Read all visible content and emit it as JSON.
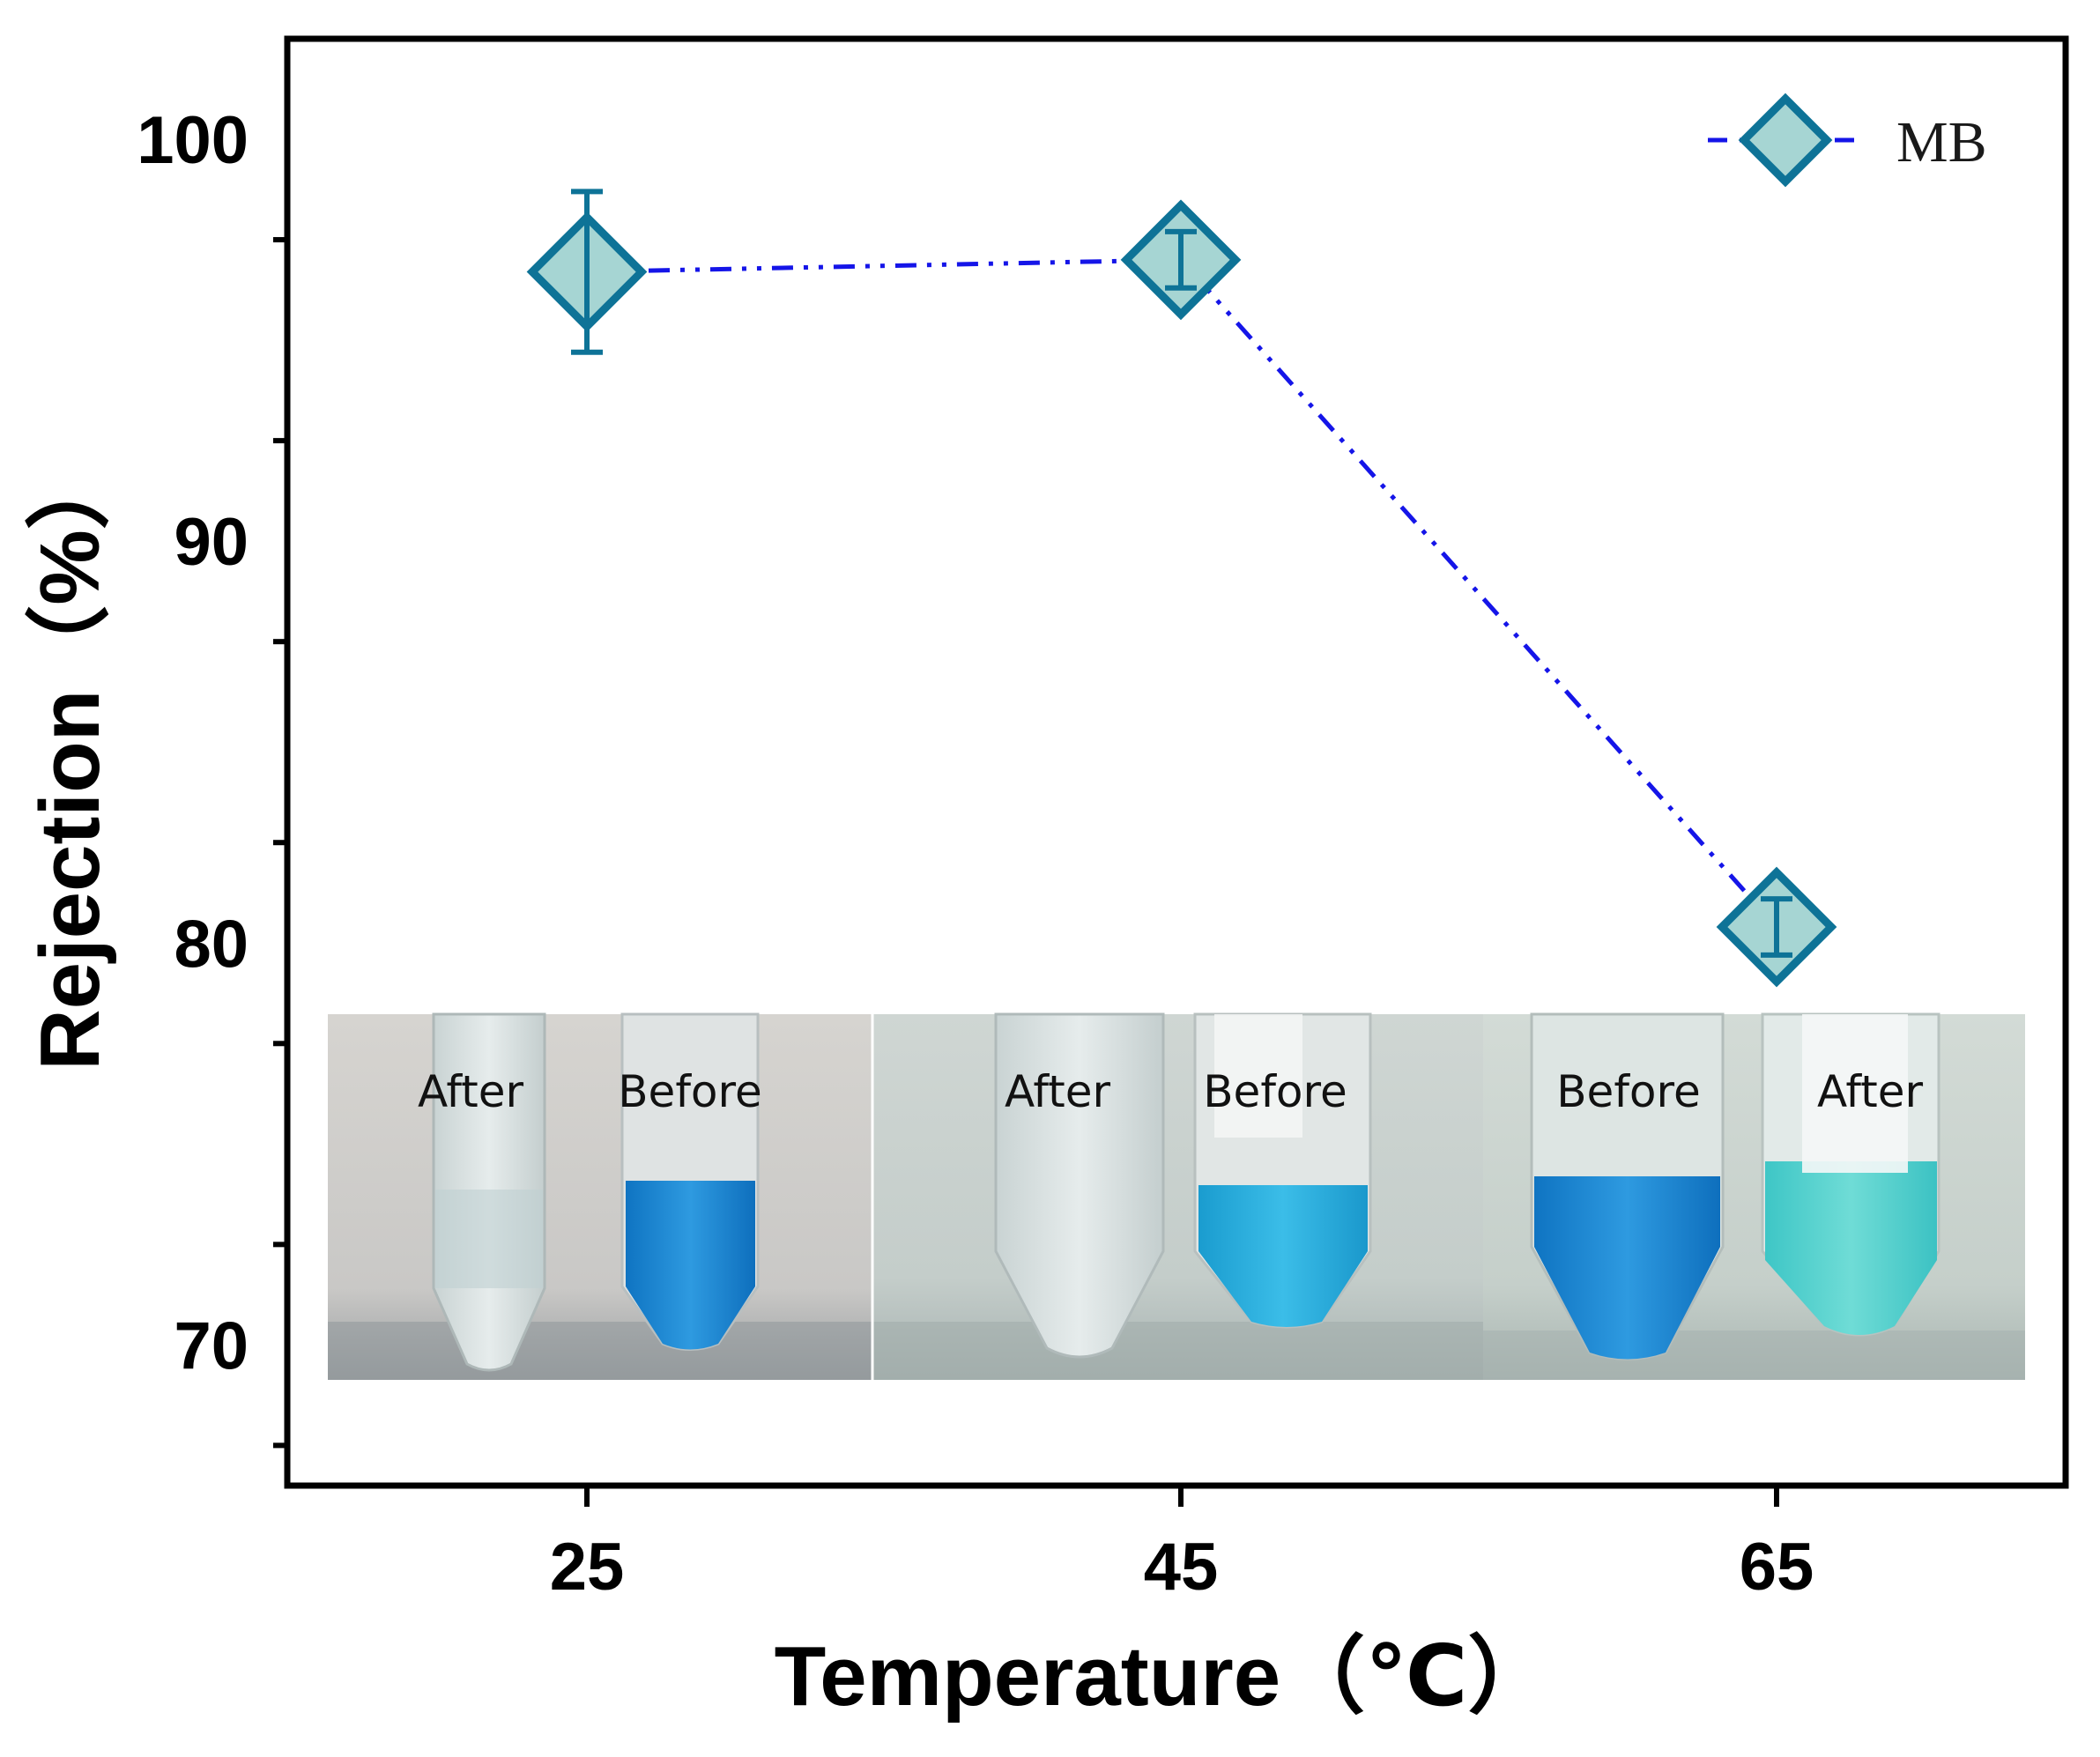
{
  "chart_data": {
    "type": "line",
    "xlabel": "Temperature（℃）",
    "ylabel": "Rejection（%）",
    "categories": [
      25,
      45,
      65
    ],
    "x_ticks": [
      "25",
      "45",
      "65"
    ],
    "y_ticks": [
      70,
      80,
      90,
      100
    ],
    "ylim": [
      66.5,
      102.5
    ],
    "series": [
      {
        "name": "MB",
        "marker": "diamond",
        "line_style": "dash-dot-dot",
        "values": [
          96.7,
          97.0,
          80.4
        ],
        "error": [
          2.0,
          0.7,
          0.7
        ]
      }
    ],
    "legend": {
      "label": "MB",
      "position": "top-right"
    },
    "colors": {
      "line": "#1515e8",
      "marker_edge": "#0e7397",
      "marker_fill": "#a6d5d3",
      "axes": "#000000"
    },
    "inset_photos": [
      {
        "labels": [
          "After",
          "Before"
        ],
        "temperature": "25"
      },
      {
        "labels": [
          "After",
          "Before"
        ],
        "temperature": "45"
      },
      {
        "labels": [
          "Before",
          "After"
        ],
        "temperature": "65"
      }
    ]
  }
}
